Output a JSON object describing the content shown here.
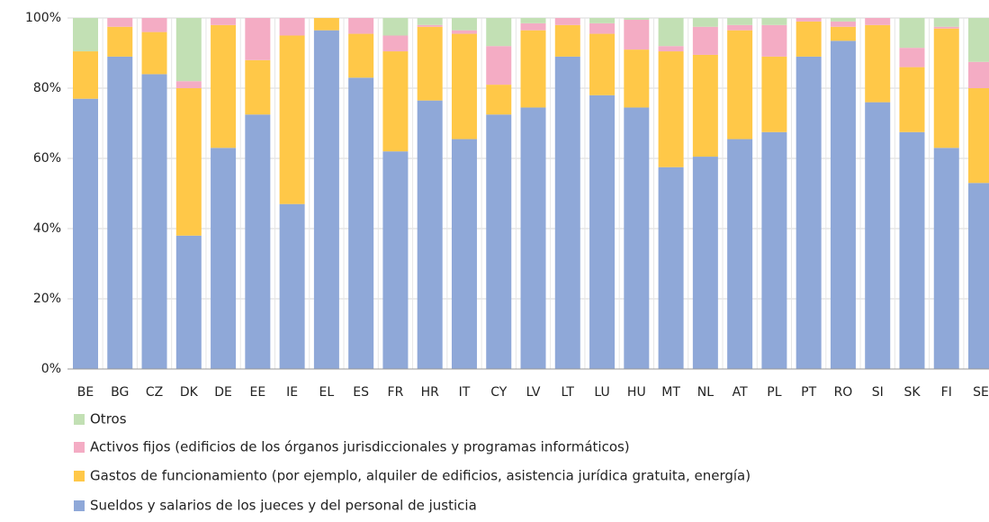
{
  "chart_data": {
    "type": "stacked_bar",
    "categories": [
      "BE",
      "BG",
      "CZ",
      "DK",
      "DE",
      "EE",
      "IE",
      "EL",
      "ES",
      "FR",
      "HR",
      "IT",
      "CY",
      "LV",
      "LT",
      "LU",
      "HU",
      "MT",
      "NL",
      "AT",
      "PL",
      "PT",
      "RO",
      "SI",
      "SK",
      "FI",
      "SE"
    ],
    "series": [
      {
        "name": "Sueldos y salarios de los jueces y del personal de justicia",
        "color": "#8fa8d8",
        "values": [
          77,
          89,
          84,
          38,
          63,
          72.5,
          47,
          96.5,
          83,
          62,
          76.5,
          65.5,
          72.5,
          74.5,
          89,
          78,
          74.5,
          57.5,
          60.5,
          65.5,
          67.5,
          89,
          93.5,
          76,
          67.5,
          63,
          53
        ]
      },
      {
        "name": "Gastos de funcionamiento (por ejemplo, alquiler de edificios, asistencia jurídica gratuita, energía)",
        "color": "#ffc848",
        "values": [
          13.5,
          8.5,
          12,
          42,
          35,
          15.5,
          48,
          3.5,
          12.5,
          28.5,
          21,
          30,
          8.5,
          22,
          9,
          17.5,
          16.5,
          33,
          29,
          31,
          21.5,
          10,
          4,
          22,
          18.5,
          34,
          27
        ]
      },
      {
        "name": "Activos fijos (edificios de los órganos jurisdiccionales y programas informáticos)",
        "color": "#f4acc4",
        "values": [
          0,
          2.5,
          4,
          2,
          2,
          12,
          5,
          0,
          4.5,
          4.5,
          0.5,
          1,
          11,
          2,
          2,
          3,
          8.5,
          1.5,
          8,
          1.5,
          9,
          1,
          1.5,
          2,
          5.5,
          0.5,
          7.5
        ]
      },
      {
        "name": "Otros",
        "color": "#c2e0b4",
        "values": [
          9.5,
          0,
          0,
          18,
          0,
          0,
          0,
          0,
          0,
          5,
          2,
          3.5,
          8,
          1.5,
          0,
          1.5,
          0.5,
          8,
          2.5,
          2,
          2,
          0,
          1,
          0,
          8.5,
          2.5,
          12.5
        ]
      }
    ],
    "ylim": [
      0,
      100
    ],
    "yticks": [
      {
        "value": 0,
        "label": "0%"
      },
      {
        "value": 20,
        "label": "20%"
      },
      {
        "value": 40,
        "label": "40%"
      },
      {
        "value": 60,
        "label": "60%"
      },
      {
        "value": 80,
        "label": "80%"
      },
      {
        "value": 100,
        "label": "100%"
      }
    ],
    "grid": true
  }
}
